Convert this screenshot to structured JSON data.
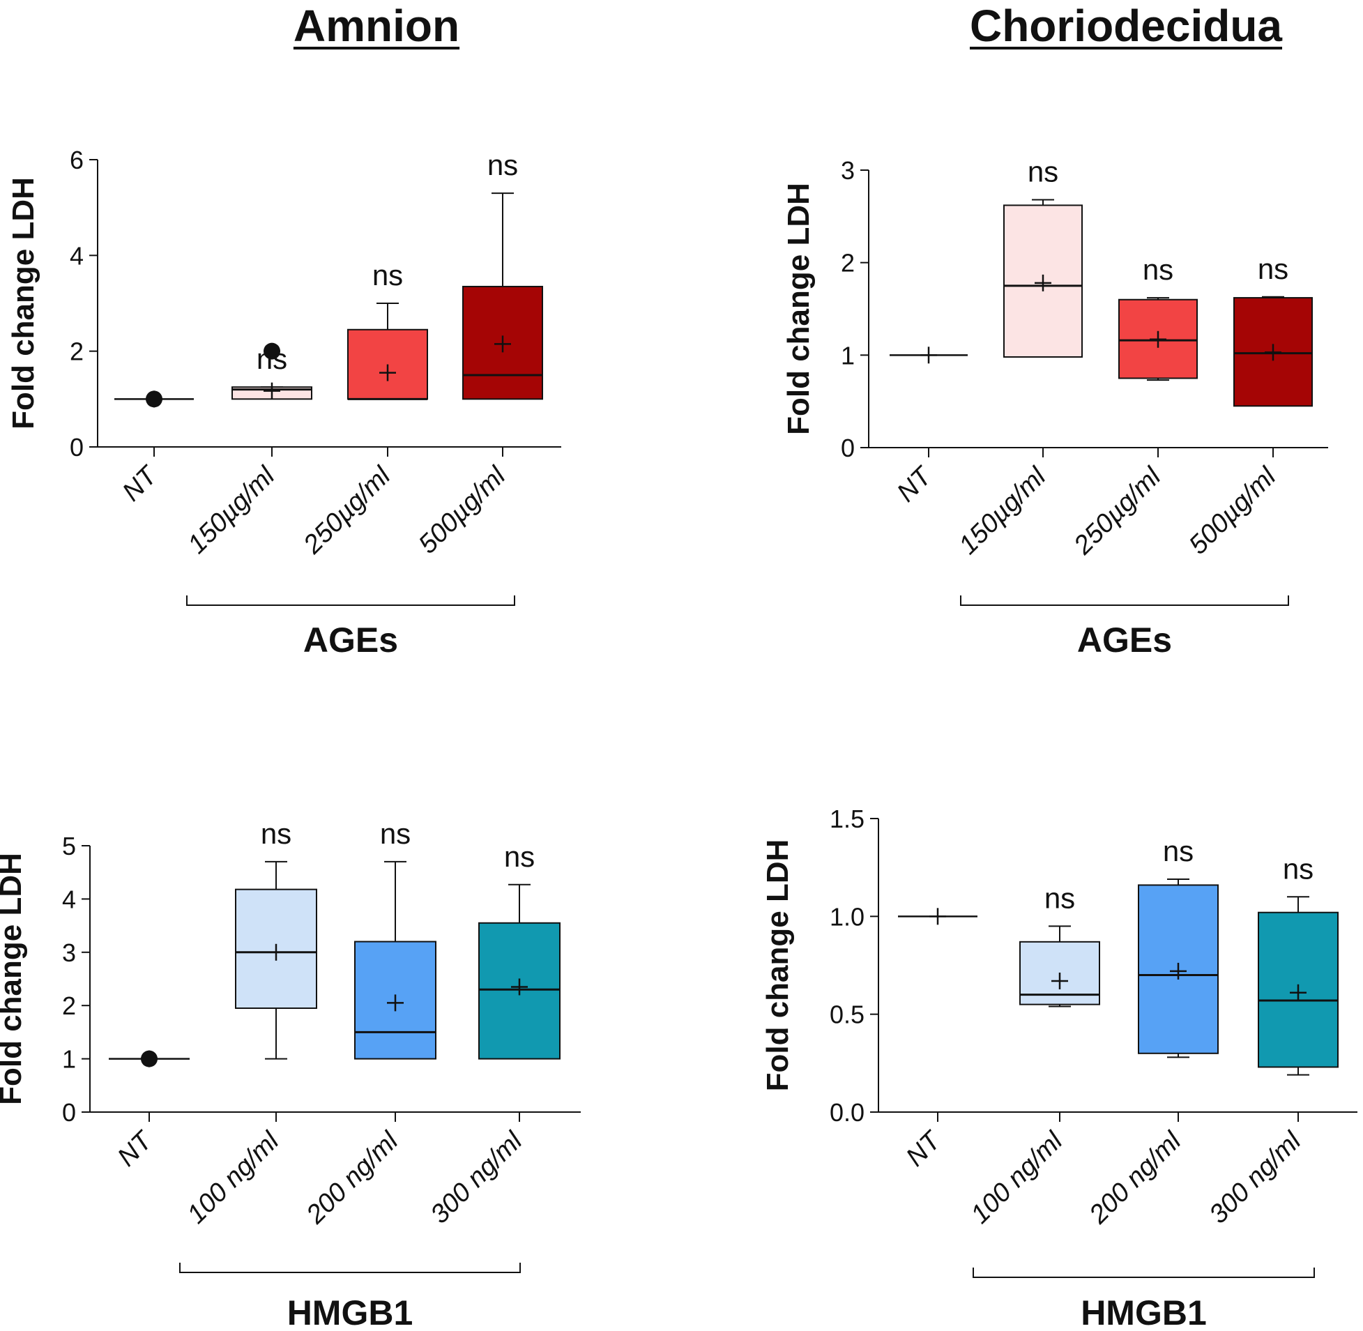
{
  "figure": {
    "columns": [
      "Amnion",
      "Choriodecidua"
    ]
  },
  "chart_data": [
    {
      "id": "amnion-ages",
      "type": "box",
      "column": "Amnion",
      "ylabel": "Fold change LDH",
      "group_label": "AGEs",
      "ylim": [
        0,
        6
      ],
      "yticks": [
        0,
        2,
        4,
        6
      ],
      "categories": [
        "NT",
        "150µg/ml",
        "250µg/ml",
        "500µg/ml"
      ],
      "boxes": [
        {
          "category": "NT",
          "min": 1,
          "q1": 1,
          "median": 1,
          "q3": 1,
          "max": 1,
          "mean": 1,
          "fill": "#ffffff",
          "outliers": [
            1
          ],
          "annotation": ""
        },
        {
          "category": "150µg/ml",
          "min": 1,
          "q1": 1,
          "median": 1.2,
          "q3": 1.25,
          "max": 1.25,
          "mean": 1.17,
          "fill": "#fce4e4",
          "outliers": [
            2
          ],
          "annotation": "ns"
        },
        {
          "category": "250µg/ml",
          "min": 1,
          "q1": 1,
          "median": 1,
          "q3": 2.45,
          "max": 3,
          "mean": 1.55,
          "fill": "#f24444",
          "outliers": [],
          "annotation": "ns"
        },
        {
          "category": "500µg/ml",
          "min": 1,
          "q1": 1,
          "median": 1.5,
          "q3": 3.35,
          "max": 5.3,
          "mean": 2.15,
          "fill": "#a50505",
          "outliers": [],
          "annotation": "ns"
        }
      ]
    },
    {
      "id": "chorio-ages",
      "type": "box",
      "column": "Choriodecidua",
      "ylabel": "Fold change LDH",
      "group_label": "AGEs",
      "ylim": [
        0,
        3
      ],
      "yticks": [
        0,
        1,
        2,
        3
      ],
      "categories": [
        "NT",
        "150µg/ml",
        "250µg/ml",
        "500µg/ml"
      ],
      "boxes": [
        {
          "category": "NT",
          "min": 1,
          "q1": 1,
          "median": 1,
          "q3": 1,
          "max": 1,
          "mean": 1,
          "fill": "#ffffff",
          "outliers": [],
          "annotation": ""
        },
        {
          "category": "150µg/ml",
          "min": 0.98,
          "q1": 0.98,
          "median": 1.75,
          "q3": 2.62,
          "max": 2.68,
          "mean": 1.78,
          "fill": "#fce4e4",
          "outliers": [],
          "annotation": "ns"
        },
        {
          "category": "250µg/ml",
          "min": 0.73,
          "q1": 0.75,
          "median": 1.16,
          "q3": 1.6,
          "max": 1.62,
          "mean": 1.17,
          "fill": "#f24444",
          "outliers": [],
          "annotation": "ns"
        },
        {
          "category": "500µg/ml",
          "min": 0.45,
          "q1": 0.45,
          "median": 1.02,
          "q3": 1.62,
          "max": 1.63,
          "mean": 1.03,
          "fill": "#a50505",
          "outliers": [],
          "annotation": "ns"
        }
      ]
    },
    {
      "id": "amnion-hmgb1",
      "type": "box",
      "column": "Amnion",
      "ylabel": "Fold change LDH",
      "group_label": "HMGB1",
      "ylim": [
        0,
        5
      ],
      "yticks": [
        0,
        1,
        2,
        3,
        4,
        5
      ],
      "categories": [
        "NT",
        "100 ng/ml",
        "200 ng/ml",
        "300 ng/ml"
      ],
      "boxes": [
        {
          "category": "NT",
          "min": 1,
          "q1": 1,
          "median": 1,
          "q3": 1,
          "max": 1,
          "mean": 1,
          "fill": "#ffffff",
          "outliers": [
            1
          ],
          "annotation": ""
        },
        {
          "category": "100 ng/ml",
          "min": 1,
          "q1": 1.95,
          "median": 3,
          "q3": 4.18,
          "max": 4.7,
          "mean": 3,
          "fill": "#cfe2f8",
          "outliers": [],
          "annotation": "ns"
        },
        {
          "category": "200 ng/ml",
          "min": 1,
          "q1": 1,
          "median": 1.5,
          "q3": 3.2,
          "max": 4.7,
          "mean": 2.05,
          "fill": "#57a2f5",
          "outliers": [],
          "annotation": "ns"
        },
        {
          "category": "300 ng/ml",
          "min": 1,
          "q1": 1,
          "median": 2.3,
          "q3": 3.55,
          "max": 4.27,
          "mean": 2.35,
          "fill": "#1199b0",
          "outliers": [],
          "annotation": "ns"
        }
      ]
    },
    {
      "id": "chorio-hmgb1",
      "type": "box",
      "column": "Choriodecidua",
      "ylabel": "Fold change LDH",
      "group_label": "HMGB1",
      "ylim": [
        0,
        1.5
      ],
      "yticks": [
        "0.0",
        "0.5",
        "1.0",
        "1.5"
      ],
      "categories": [
        "NT",
        "100 ng/ml",
        "200 ng/ml",
        "300 ng/ml"
      ],
      "boxes": [
        {
          "category": "NT",
          "min": 1,
          "q1": 1,
          "median": 1,
          "q3": 1,
          "max": 1,
          "mean": 1,
          "fill": "#ffffff",
          "outliers": [],
          "annotation": ""
        },
        {
          "category": "100 ng/ml",
          "min": 0.54,
          "q1": 0.55,
          "median": 0.6,
          "q3": 0.87,
          "max": 0.95,
          "mean": 0.67,
          "fill": "#cfe2f8",
          "outliers": [],
          "annotation": "ns"
        },
        {
          "category": "200 ng/ml",
          "min": 0.28,
          "q1": 0.3,
          "median": 0.7,
          "q3": 1.16,
          "max": 1.19,
          "mean": 0.72,
          "fill": "#57a2f5",
          "outliers": [],
          "annotation": "ns"
        },
        {
          "category": "300 ng/ml",
          "min": 0.19,
          "q1": 0.23,
          "median": 0.57,
          "q3": 1.02,
          "max": 1.1,
          "mean": 0.61,
          "fill": "#1199b0",
          "outliers": [],
          "annotation": "ns"
        }
      ]
    }
  ]
}
